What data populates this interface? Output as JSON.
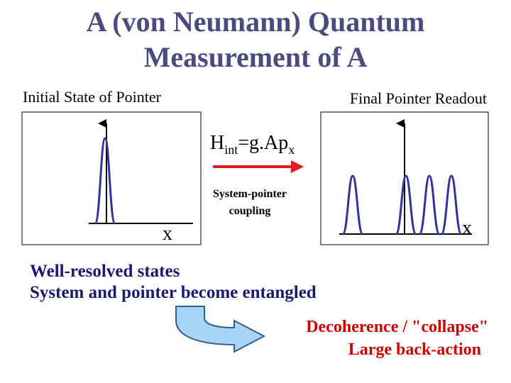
{
  "title": [
    "A (von Neumann) Quantum",
    "Measurement of A"
  ],
  "left_panel": {
    "label": "Initial State of Pointer",
    "axis_label": "x"
  },
  "right_panel": {
    "label": "Final Pointer Readout",
    "axis_label": "x"
  },
  "hamiltonian": {
    "base": "H",
    "sub1": "int",
    "mid": "=g.Ap",
    "sub2": "x"
  },
  "coupling": [
    "System-pointer",
    "coupling"
  ],
  "notes": [
    "Well-resolved states",
    "System and pointer become entangled"
  ],
  "result": [
    "Decoherence / \"collapse\"",
    "Large back-action"
  ]
}
